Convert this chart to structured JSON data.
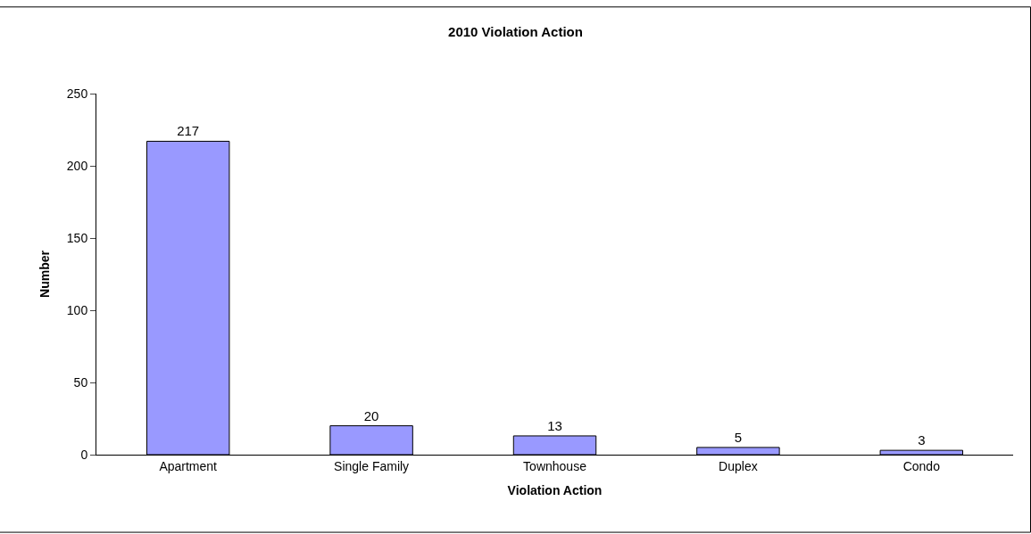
{
  "chart_data": {
    "type": "bar",
    "title": "2010 Violation Action",
    "xlabel": "Violation Action",
    "ylabel": "Number",
    "categories": [
      "Apartment",
      "Single Family",
      "Townhouse",
      "Duplex",
      "Condo"
    ],
    "values": [
      217,
      20,
      13,
      5,
      3
    ],
    "color": "#9999ff",
    "ylim": [
      0,
      250
    ],
    "yticks": [
      0,
      50,
      100,
      150,
      200,
      250
    ],
    "data_labels": true
  }
}
